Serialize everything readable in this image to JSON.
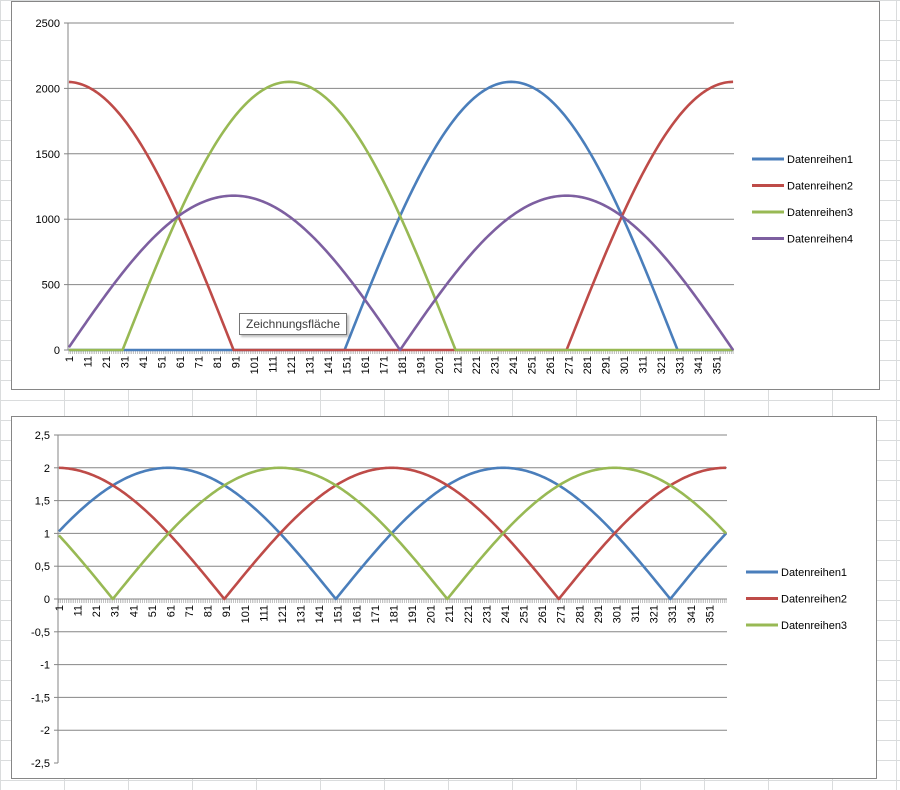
{
  "chart_data": [
    {
      "type": "line",
      "x": {
        "start": 1,
        "end": 360,
        "step": 1
      },
      "tick_label_step": 10,
      "yticks": [
        0,
        500,
        1000,
        1500,
        2000,
        2500
      ],
      "ylim": [
        0,
        2500
      ],
      "grid": "horizontal",
      "legend": "right",
      "series": [
        {
          "name": "Datenreihen1",
          "color": "#4a7ebb",
          "amplitude": 2050,
          "phase_deg": 210,
          "clip_zero": true,
          "unit_arcs": [
            [
              1,
              30,
              60
            ],
            [
              120,
              150,
              180
            ],
            [
              240,
              270,
              300
            ]
          ]
        },
        {
          "name": "Datenreihen2",
          "color": "#be4b48",
          "amplitude": 2050,
          "phase_deg": 90,
          "clip_zero": true,
          "unit_arcs": [
            [
              300,
              330,
              360
            ],
            [
              0,
              30,
              60
            ],
            [
              120,
              150,
              180
            ]
          ]
        },
        {
          "name": "Datenreihen3",
          "color": "#98b954",
          "amplitude": 2050,
          "phase_deg": 330,
          "clip_zero": true,
          "unit_arcs": [
            [
              120,
              150,
              180
            ],
            [
              240,
              270,
              300
            ],
            [
              0,
              30,
              60
            ]
          ]
        },
        {
          "name": "Datenreihen4",
          "color": "#7d5fa0",
          "amplitude": 1180,
          "phase_deg": 0,
          "clip_zero": false,
          "unit_arcs": [
            [
              1,
              30,
              60
            ],
            [
              120,
              150,
              180
            ],
            [
              240,
              270,
              300
            ]
          ]
        }
      ],
      "tooltip": "Zeichnungsfläche"
    },
    {
      "type": "line",
      "x": {
        "start": 1,
        "end": 360,
        "step": 1
      },
      "tick_label_step": 10,
      "yticks": [
        2.5,
        2,
        1.5,
        1,
        0.5,
        0,
        -0.5,
        -1,
        -1.5,
        -2,
        -2.5
      ],
      "ytick_labels": [
        "2,5",
        "2",
        "1,5",
        "1",
        "0,5",
        "0",
        "-0,5",
        "-1",
        "-1,5",
        "-2",
        "-2,5"
      ],
      "ylim": [
        -2.5,
        2.5
      ],
      "grid": "horizontal",
      "legend": "right",
      "series": [
        {
          "name": "Datenreihen1",
          "color": "#4a7ebb",
          "amplitude": 2,
          "phase_deg": 210
        },
        {
          "name": "Datenreihen2",
          "color": "#be4b48",
          "amplitude": 2,
          "phase_deg": 90
        },
        {
          "name": "Datenreihen3",
          "color": "#98b954",
          "amplitude": 2,
          "phase_deg": 330
        }
      ]
    }
  ]
}
